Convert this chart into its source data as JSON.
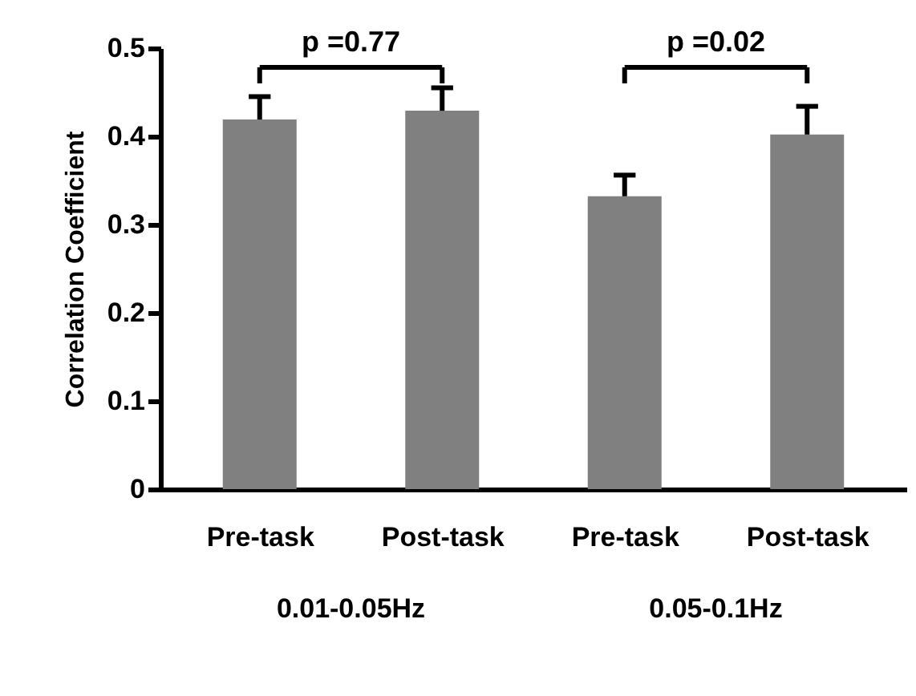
{
  "chart_data": {
    "type": "bar",
    "ylabel": "Correlation Coefficient",
    "categories": [
      "Pre-task",
      "Post-task",
      "Pre-task",
      "Post-task"
    ],
    "values": [
      0.419,
      0.429,
      0.332,
      0.402
    ],
    "errors": [
      [
        0.419,
        0.445
      ],
      [
        0.429,
        0.455
      ],
      [
        0.332,
        0.356
      ],
      [
        0.402,
        0.434
      ]
    ],
    "color": "#808080",
    "ylim": [
      0,
      0.5
    ],
    "yticks": [
      0,
      0.1,
      0.2,
      0.3,
      0.4,
      0.5
    ],
    "annotations": [
      "p =0.77",
      "p =0.02",
      "0.01-0.05Hz",
      "0.05-0.1Hz"
    ]
  }
}
